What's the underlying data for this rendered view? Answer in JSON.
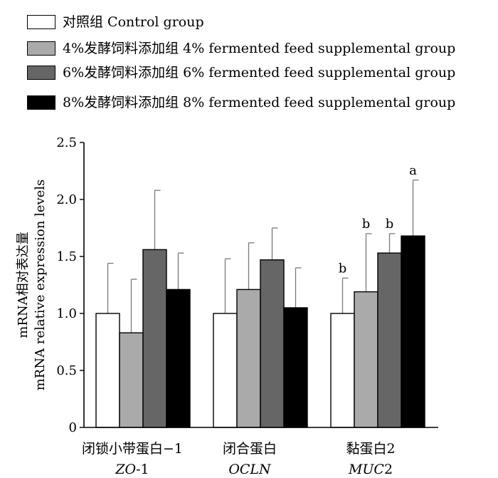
{
  "chart_data": {
    "type": "bar",
    "title": "",
    "ylabel_lines": [
      "mRNA相对表达量",
      "mRNA relative expression levels"
    ],
    "xlabel": "",
    "ylim": [
      0,
      2.5
    ],
    "yticks": [
      0,
      0.5,
      1.0,
      1.5,
      2.0,
      2.5
    ],
    "ytick_labels": [
      "0",
      "0.5",
      "1.0",
      "1.5",
      "2.0",
      "2.5"
    ],
    "categories": [
      {
        "label": "闭锁小带蛋白−1",
        "gene_prefix": "ZO",
        "gene_suffix": "-1"
      },
      {
        "label": "闭合蛋白",
        "gene_prefix": "OCLN",
        "gene_suffix": ""
      },
      {
        "label": "黏蛋白2",
        "gene_prefix": "MUC",
        "gene_suffix": "2"
      }
    ],
    "legend_position": "top-left",
    "grid": false,
    "series": [
      {
        "name": "对照组 Control group",
        "color": "#ffffff",
        "values": [
          1.0,
          1.0,
          1.0
        ],
        "errors": [
          0.44,
          0.48,
          0.31
        ],
        "sig": [
          "",
          "",
          "b"
        ]
      },
      {
        "name": "4%发酵饲料添加组 4% fermented feed supplemental group",
        "color": "#aaaaaa",
        "values": [
          0.83,
          1.21,
          1.19
        ],
        "errors": [
          0.47,
          0.41,
          0.51
        ],
        "sig": [
          "",
          "",
          "b"
        ]
      },
      {
        "name": "6%发酵饲料添加组 6% fermented feed supplemental group",
        "color": "#666666",
        "values": [
          1.56,
          1.47,
          1.53
        ],
        "errors": [
          0.52,
          0.28,
          0.17
        ],
        "sig": [
          "",
          "",
          "b"
        ]
      },
      {
        "name": "8%发酵饲料添加组 8% fermented feed supplemental group",
        "color": "#000000",
        "values": [
          1.21,
          1.05,
          1.68
        ],
        "errors": [
          0.32,
          0.35,
          0.49
        ],
        "sig": [
          "",
          "",
          "a"
        ]
      }
    ]
  }
}
